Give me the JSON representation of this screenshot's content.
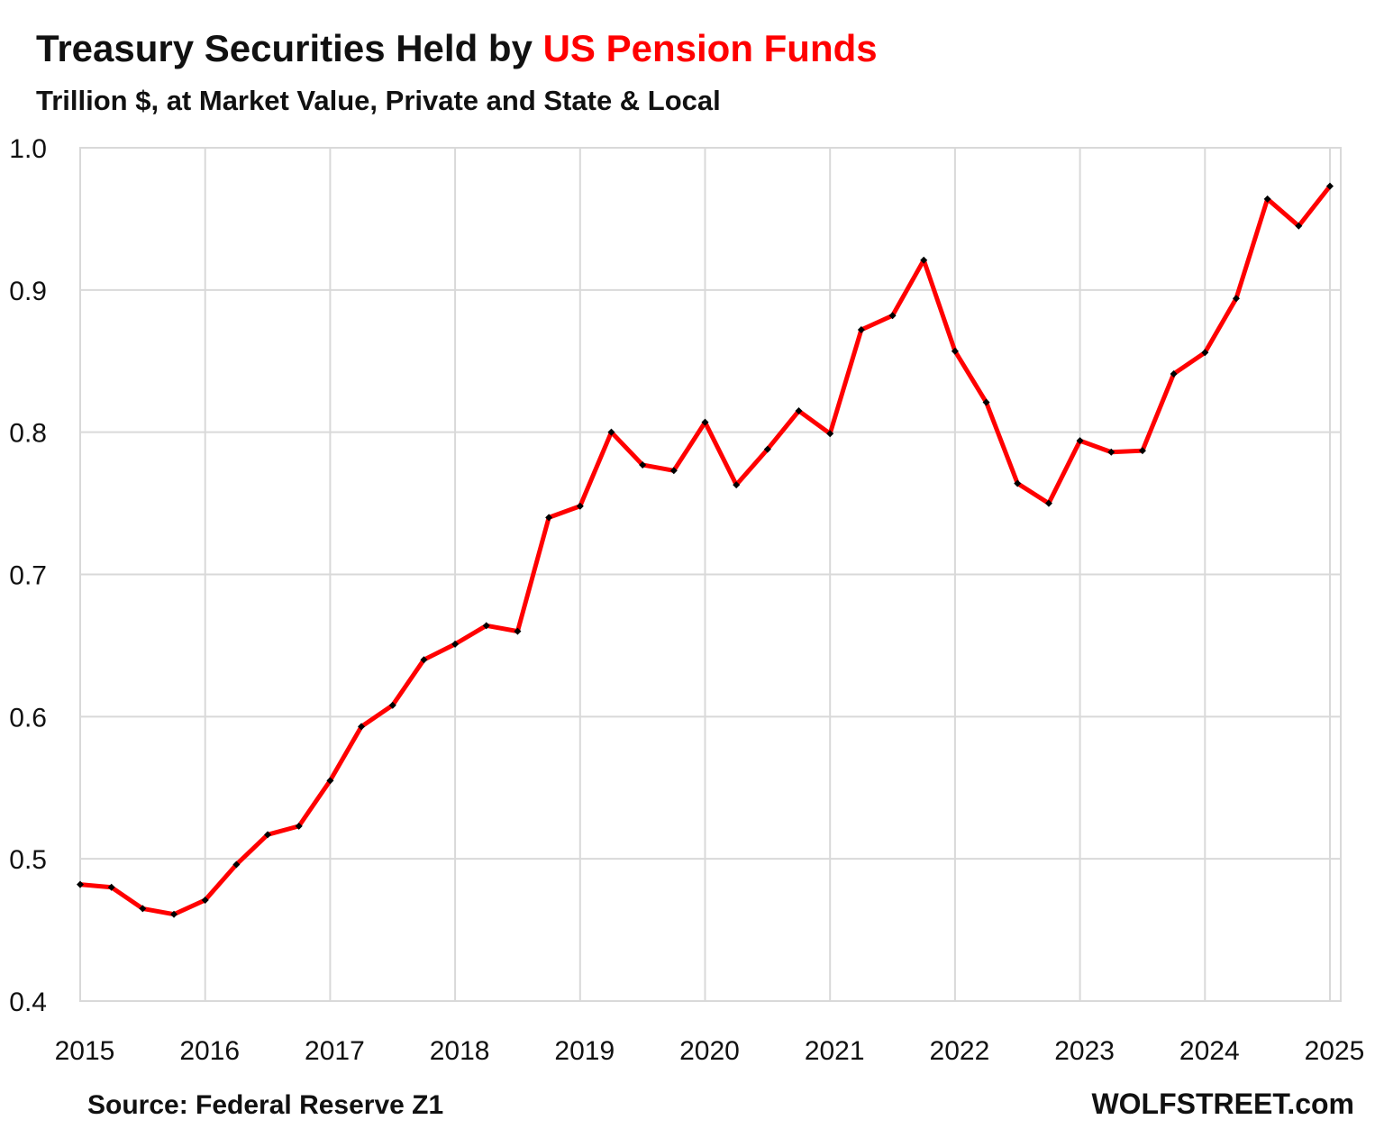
{
  "chart_data": {
    "type": "line",
    "title": "Treasury Securities Held by",
    "title_highlight": "US Pension Funds",
    "subtitle": "Trillion $, at Market Value, Private and State & Local",
    "source": "Source: Federal Reserve Z1",
    "credit": "WOLFSTREET.com",
    "x": [
      2015,
      2015.25,
      2015.5,
      2015.75,
      2016,
      2016.25,
      2016.5,
      2016.75,
      2017,
      2017.25,
      2017.5,
      2017.75,
      2018,
      2018.25,
      2018.5,
      2018.75,
      2019,
      2019.25,
      2019.5,
      2019.75,
      2020,
      2020.25,
      2020.5,
      2020.75,
      2021,
      2021.25,
      2021.5,
      2021.75,
      2022,
      2022.25,
      2022.5,
      2022.75,
      2023,
      2023.25,
      2023.5,
      2023.75,
      2024,
      2024.25,
      2024.5,
      2024.75,
      2025
    ],
    "series": [
      {
        "color": "#ff0000",
        "marker_color": "#000000",
        "values": [
          0.482,
          0.48,
          0.465,
          0.461,
          0.471,
          0.496,
          0.517,
          0.523,
          0.555,
          0.593,
          0.608,
          0.64,
          0.651,
          0.664,
          0.66,
          0.74,
          0.748,
          0.8,
          0.777,
          0.773,
          0.807,
          0.763,
          0.788,
          0.815,
          0.799,
          0.872,
          0.882,
          0.921,
          0.857,
          0.821,
          0.764,
          0.75,
          0.794,
          0.786,
          0.787,
          0.841,
          0.856,
          0.894,
          0.964,
          0.945,
          0.973
        ]
      }
    ],
    "xlim": [
      2015,
      2025
    ],
    "xticks": [
      2015,
      2016,
      2017,
      2018,
      2019,
      2020,
      2021,
      2022,
      2023,
      2024,
      2025
    ],
    "ylim": [
      0.4,
      1.0
    ],
    "yticks": [
      {
        "value": 0.4,
        "label": "0.4"
      },
      {
        "value": 0.5,
        "label": "0.5"
      },
      {
        "value": 0.6,
        "label": "0.6"
      },
      {
        "value": 0.7,
        "label": "0.7"
      },
      {
        "value": 0.8,
        "label": "0.8"
      },
      {
        "value": 0.9,
        "label": "0.9"
      },
      {
        "value": 1.0,
        "label": "1.0"
      }
    ],
    "grid": true
  }
}
